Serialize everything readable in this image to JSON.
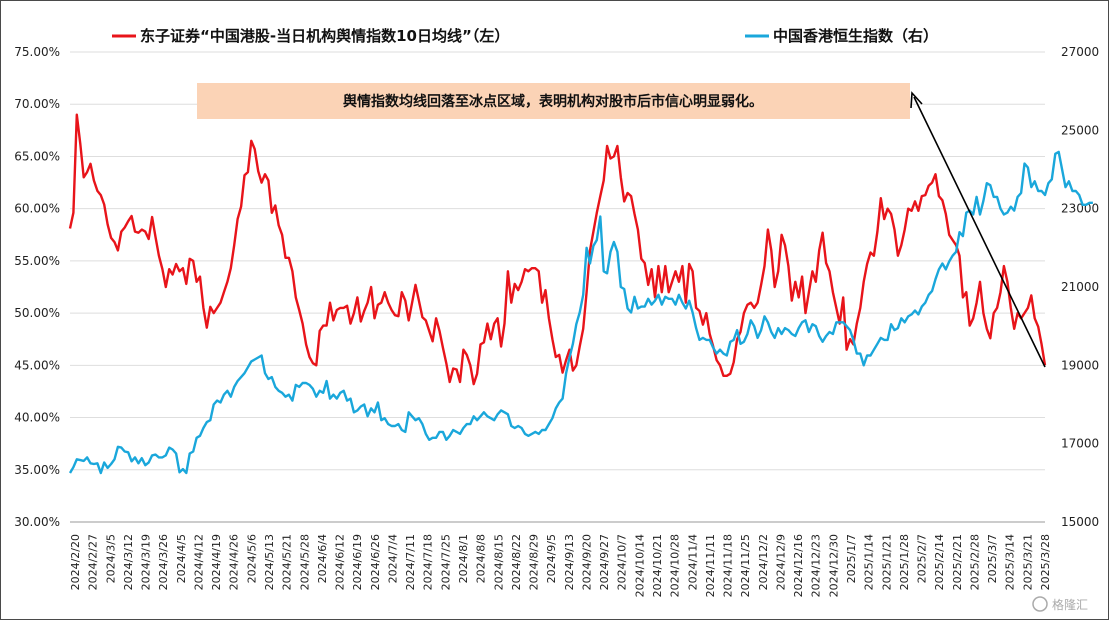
{
  "chart_data": {
    "type": "line",
    "legend_placement": "top",
    "grid": true,
    "y_left": {
      "ylim": [
        0.3,
        0.75
      ],
      "ticks": [
        "30.00%",
        "35.00%",
        "40.00%",
        "45.00%",
        "50.00%",
        "55.00%",
        "60.00%",
        "65.00%",
        "70.00%",
        "75.00%"
      ]
    },
    "y_right": {
      "ylim": [
        15000,
        27000
      ],
      "ticks": [
        "15000",
        "17000",
        "19000",
        "21000",
        "23000",
        "25000",
        "27000"
      ]
    },
    "x_tick_labels": [
      "2024/2/20",
      "2024/2/27",
      "2024/3/5",
      "2024/3/12",
      "2024/3/19",
      "2024/3/26",
      "2024/4/5",
      "2024/4/12",
      "2024/4/19",
      "2024/4/26",
      "2024/5/6",
      "2024/5/13",
      "2024/5/21",
      "2024/5/28",
      "2024/6/4",
      "2024/6/12",
      "2024/6/19",
      "2024/6/26",
      "2024/7/4",
      "2024/7/11",
      "2024/7/18",
      "2024/7/25",
      "2024/8/1",
      "2024/8/8",
      "2024/8/15",
      "2024/8/22",
      "2024/8/29",
      "2024/9/5",
      "2024/9/13",
      "2024/9/20",
      "2024/9/27",
      "2024/10/7",
      "2024/10/14",
      "2024/10/21",
      "2024/10/28",
      "2024/11/4",
      "2024/11/11",
      "2024/11/18",
      "2024/11/25",
      "2024/12/2",
      "2024/12/9",
      "2024/12/16",
      "2024/12/23",
      "2024/12/30",
      "2025/1/7",
      "2025/1/14",
      "2025/1/21",
      "2025/1/28",
      "2025/2/7",
      "2025/2/14",
      "2025/2/21",
      "2025/2/28",
      "2025/3/7",
      "2025/3/14",
      "2025/3/21",
      "2025/3/28"
    ],
    "annotation": "舆情指数均线回落至冰点区域，表明机构对股市后市信心明显弱化。",
    "series": [
      {
        "name": "东子证券“中国港股-当日机构舆情指数10日均线”（左）",
        "axis": "left",
        "color": "#e8141a",
        "values": [
          0.581,
          0.596,
          0.69,
          0.662,
          0.63,
          0.635,
          0.643,
          0.627,
          0.617,
          0.613,
          0.604,
          0.585,
          0.572,
          0.568,
          0.56,
          0.578,
          0.582,
          0.588,
          0.593,
          0.578,
          0.577,
          0.58,
          0.578,
          0.571,
          0.592,
          0.573,
          0.555,
          0.542,
          0.525,
          0.542,
          0.537,
          0.547,
          0.54,
          0.543,
          0.528,
          0.552,
          0.55,
          0.53,
          0.535,
          0.505,
          0.486,
          0.506,
          0.5,
          0.505,
          0.51,
          0.52,
          0.53,
          0.543,
          0.565,
          0.59,
          0.602,
          0.632,
          0.635,
          0.665,
          0.657,
          0.636,
          0.625,
          0.633,
          0.627,
          0.596,
          0.603,
          0.584,
          0.575,
          0.553,
          0.553,
          0.54,
          0.515,
          0.503,
          0.49,
          0.47,
          0.458,
          0.452,
          0.45,
          0.483,
          0.488,
          0.488,
          0.51,
          0.493,
          0.503,
          0.505,
          0.505,
          0.507,
          0.49,
          0.5,
          0.515,
          0.492,
          0.502,
          0.51,
          0.525,
          0.495,
          0.508,
          0.51,
          0.52,
          0.51,
          0.503,
          0.498,
          0.497,
          0.52,
          0.512,
          0.493,
          0.51,
          0.527,
          0.512,
          0.496,
          0.493,
          0.483,
          0.473,
          0.495,
          0.483,
          0.467,
          0.452,
          0.434,
          0.447,
          0.446,
          0.434,
          0.465,
          0.46,
          0.45,
          0.432,
          0.442,
          0.47,
          0.472,
          0.49,
          0.475,
          0.49,
          0.495,
          0.468,
          0.49,
          0.54,
          0.51,
          0.528,
          0.522,
          0.53,
          0.542,
          0.54,
          0.543,
          0.543,
          0.54,
          0.51,
          0.522,
          0.495,
          0.475,
          0.458,
          0.46,
          0.443,
          0.455,
          0.465,
          0.445,
          0.45,
          0.468,
          0.485,
          0.52,
          0.56,
          0.578,
          0.596,
          0.612,
          0.627,
          0.66,
          0.648,
          0.65,
          0.66,
          0.63,
          0.607,
          0.615,
          0.612,
          0.595,
          0.58,
          0.552,
          0.548,
          0.527,
          0.542,
          0.515,
          0.545,
          0.52,
          0.545,
          0.52,
          0.53,
          0.54,
          0.53,
          0.545,
          0.51,
          0.547,
          0.54,
          0.505,
          0.502,
          0.489,
          0.5,
          0.48,
          0.468,
          0.455,
          0.45,
          0.44,
          0.44,
          0.442,
          0.453,
          0.475,
          0.482,
          0.5,
          0.508,
          0.51,
          0.505,
          0.51,
          0.527,
          0.545,
          0.58,
          0.56,
          0.525,
          0.54,
          0.575,
          0.565,
          0.545,
          0.512,
          0.53,
          0.515,
          0.535,
          0.5,
          0.52,
          0.54,
          0.53,
          0.56,
          0.577,
          0.548,
          0.54,
          0.52,
          0.505,
          0.49,
          0.515,
          0.465,
          0.475,
          0.47,
          0.49,
          0.505,
          0.53,
          0.547,
          0.558,
          0.555,
          0.578,
          0.61,
          0.59,
          0.6,
          0.595,
          0.58,
          0.555,
          0.565,
          0.58,
          0.6,
          0.598,
          0.607,
          0.598,
          0.612,
          0.613,
          0.622,
          0.625,
          0.633,
          0.612,
          0.608,
          0.595,
          0.575,
          0.57,
          0.565,
          0.555,
          0.515,
          0.52,
          0.488,
          0.495,
          0.51,
          0.53,
          0.5,
          0.485,
          0.476,
          0.5,
          0.505,
          0.52,
          0.545,
          0.53,
          0.505,
          0.485,
          0.5,
          0.495,
          0.5,
          0.505,
          0.517,
          0.495,
          0.487,
          0.47,
          0.45
        ]
      },
      {
        "name": "中国香港恒生指数（右）",
        "axis": "right",
        "color": "#1aa7db",
        "values": [
          16250,
          16400,
          16600,
          16580,
          16560,
          16650,
          16500,
          16480,
          16500,
          16250,
          16520,
          16380,
          16480,
          16600,
          16920,
          16900,
          16800,
          16780,
          16550,
          16650,
          16500,
          16630,
          16450,
          16520,
          16700,
          16720,
          16650,
          16650,
          16700,
          16900,
          16850,
          16750,
          16270,
          16350,
          16250,
          16750,
          16800,
          17150,
          17200,
          17400,
          17550,
          17600,
          18000,
          18100,
          18050,
          18250,
          18350,
          18200,
          18450,
          18600,
          18700,
          18800,
          18950,
          19100,
          19150,
          19200,
          19250,
          18800,
          18650,
          18700,
          18450,
          18350,
          18300,
          18200,
          18250,
          18100,
          18500,
          18450,
          18550,
          18550,
          18500,
          18400,
          18200,
          18350,
          18300,
          18600,
          18150,
          18250,
          18150,
          18300,
          18350,
          18100,
          18150,
          17800,
          17850,
          17950,
          18000,
          17700,
          17900,
          17800,
          18050,
          17600,
          17650,
          17500,
          17450,
          17450,
          17500,
          17350,
          17300,
          17800,
          17700,
          17600,
          17650,
          17500,
          17250,
          17100,
          17150,
          17150,
          17300,
          17300,
          17100,
          17200,
          17350,
          17300,
          17250,
          17400,
          17500,
          17500,
          17700,
          17600,
          17700,
          17800,
          17700,
          17650,
          17600,
          17750,
          17850,
          17800,
          17750,
          17450,
          17400,
          17450,
          17400,
          17250,
          17200,
          17250,
          17300,
          17250,
          17350,
          17350,
          17500,
          17650,
          17900,
          18050,
          18150,
          18800,
          19200,
          19550,
          20050,
          20350,
          20800,
          22000,
          21600,
          22050,
          22200,
          22800,
          21400,
          21350,
          21900,
          22150,
          21900,
          21000,
          20950,
          20450,
          20350,
          20750,
          20450,
          20500,
          20500,
          20700,
          20550,
          20650,
          20800,
          20550,
          20750,
          20700,
          20700,
          20550,
          20800,
          20600,
          20450,
          20650,
          20350,
          19950,
          19650,
          19700,
          19650,
          19650,
          19450,
          19300,
          19400,
          19300,
          19250,
          19600,
          19650,
          19900,
          19550,
          19600,
          19800,
          20150,
          20000,
          19700,
          19900,
          20250,
          20100,
          19850,
          19700,
          19950,
          19800,
          19950,
          19900,
          19800,
          19750,
          19950,
          20100,
          20150,
          19850,
          20050,
          20000,
          19750,
          19600,
          19750,
          19850,
          19800,
          20100,
          20100,
          20100,
          20000,
          19900,
          19650,
          19300,
          19300,
          19000,
          19250,
          19250,
          19400,
          19550,
          19700,
          19650,
          19650,
          20050,
          19900,
          19950,
          20200,
          20100,
          20250,
          20300,
          20400,
          20300,
          20500,
          20600,
          20800,
          20900,
          21200,
          21450,
          21600,
          21450,
          21650,
          21800,
          21900,
          22400,
          22300,
          22900,
          22950,
          22850,
          23300,
          22850,
          23200,
          23650,
          23600,
          23300,
          23300,
          23000,
          22850,
          22900,
          23050,
          22950,
          23300,
          23400,
          24150,
          24050,
          23550,
          23700,
          23450,
          23450,
          23350,
          23650,
          23750,
          24400,
          24450,
          24000,
          23550,
          23700,
          23450,
          23450,
          23350,
          23100,
          23100,
          23150,
          23150
        ]
      }
    ]
  },
  "watermark": {
    "label": "格隆汇"
  },
  "colors": {
    "grid": "#dedede",
    "box_fill": "#fbd3b6",
    "arrow": "#000000"
  }
}
